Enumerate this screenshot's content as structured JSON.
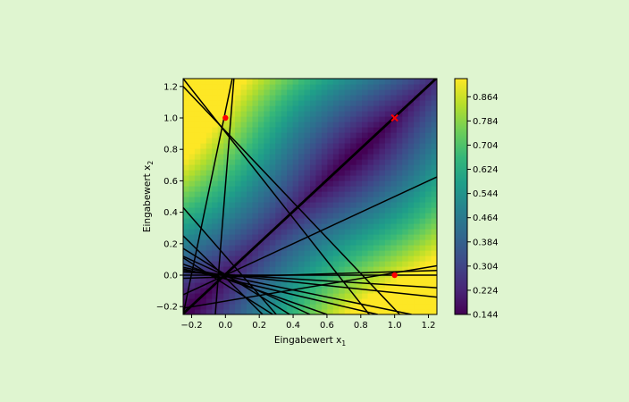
{
  "figure": {
    "background": "#dff5d0"
  },
  "chart_data": {
    "type": "heatmap",
    "colormap": "viridis",
    "xlabel": "Eingabewert x",
    "xlabel_sub": "1",
    "ylabel": "Eingabewert x",
    "ylabel_sub": "2",
    "xlim": [
      -0.25,
      1.25
    ],
    "ylim": [
      -0.25,
      1.25
    ],
    "xticks": [
      -0.2,
      0.0,
      0.2,
      0.4,
      0.6,
      0.8,
      1.0,
      1.2
    ],
    "xtick_labels": [
      "−0.2",
      "0.0",
      "0.2",
      "0.4",
      "0.6",
      "0.8",
      "1.0",
      "1.2"
    ],
    "yticks": [
      -0.2,
      0.0,
      0.2,
      0.4,
      0.6,
      0.8,
      1.0,
      1.2
    ],
    "ytick_labels": [
      "−0.2",
      "0.0",
      "0.2",
      "0.4",
      "0.6",
      "0.8",
      "1.0",
      "1.2"
    ],
    "colorbar": {
      "min": 0.144,
      "max": 0.924,
      "ticks": [
        0.144,
        0.224,
        0.304,
        0.384,
        0.464,
        0.544,
        0.624,
        0.704,
        0.784,
        0.864
      ],
      "tick_labels": [
        "0.144",
        "0.224",
        "0.304",
        "0.384",
        "0.464",
        "0.544",
        "0.624",
        "0.704",
        "0.784",
        "0.864"
      ]
    },
    "field": {
      "bias": 0.5,
      "wx": 0.7,
      "wy": -0.7,
      "wxy": 0.15
    },
    "points": [
      {
        "x": 0.0,
        "y": 1.0,
        "marker": "dot",
        "color": "#ff0000"
      },
      {
        "x": 1.0,
        "y": 1.0,
        "marker": "cross",
        "color": "#ff0000"
      },
      {
        "x": 1.0,
        "y": 0.0,
        "marker": "dot",
        "color": "#ff0000"
      }
    ],
    "lines": [
      {
        "x1": -0.25,
        "y1": -0.25,
        "x2": 1.25,
        "y2": 1.25
      },
      {
        "x1": -0.25,
        "y1": -0.24,
        "x2": 1.25,
        "y2": 1.26
      },
      {
        "x1": -0.25,
        "y1": -0.125,
        "x2": 1.25,
        "y2": 0.625
      },
      {
        "x1": -0.25,
        "y1": 1.25,
        "x2": 0.85,
        "y2": -0.25
      },
      {
        "x1": -0.25,
        "y1": 1.2,
        "x2": 1.03,
        "y2": -0.25
      },
      {
        "x1": 0.05,
        "y1": 1.25,
        "x2": -0.06,
        "y2": -0.25
      },
      {
        "x1": -0.25,
        "y1": -0.25,
        "x2": 0.04,
        "y2": 1.25
      },
      {
        "x1": -0.25,
        "y1": 0.43,
        "x2": 0.3,
        "y2": -0.25
      },
      {
        "x1": -0.25,
        "y1": 0.03,
        "x2": 1.25,
        "y2": -0.14
      },
      {
        "x1": -0.25,
        "y1": -0.02,
        "x2": 1.25,
        "y2": 0.03
      },
      {
        "x1": -0.25,
        "y1": 0.0,
        "x2": 1.25,
        "y2": 0.0
      },
      {
        "x1": -0.25,
        "y1": 0.07,
        "x2": 0.6,
        "y2": -0.25
      },
      {
        "x1": -0.25,
        "y1": -0.21,
        "x2": 1.25,
        "y2": 0.06
      },
      {
        "x1": -0.25,
        "y1": 0.17,
        "x2": 0.38,
        "y2": -0.25
      },
      {
        "x1": -0.25,
        "y1": 0.12,
        "x2": 0.5,
        "y2": -0.25
      },
      {
        "x1": -0.25,
        "y1": 0.05,
        "x2": 1.1,
        "y2": -0.25
      },
      {
        "x1": -0.25,
        "y1": 0.04,
        "x2": 0.9,
        "y2": -0.25
      },
      {
        "x1": -0.25,
        "y1": 0.02,
        "x2": 1.25,
        "y2": -0.08
      },
      {
        "x1": -0.25,
        "y1": 0.25,
        "x2": 0.22,
        "y2": -0.25
      },
      {
        "x1": -0.25,
        "y1": 0.11,
        "x2": 0.28,
        "y2": -0.25
      }
    ]
  }
}
